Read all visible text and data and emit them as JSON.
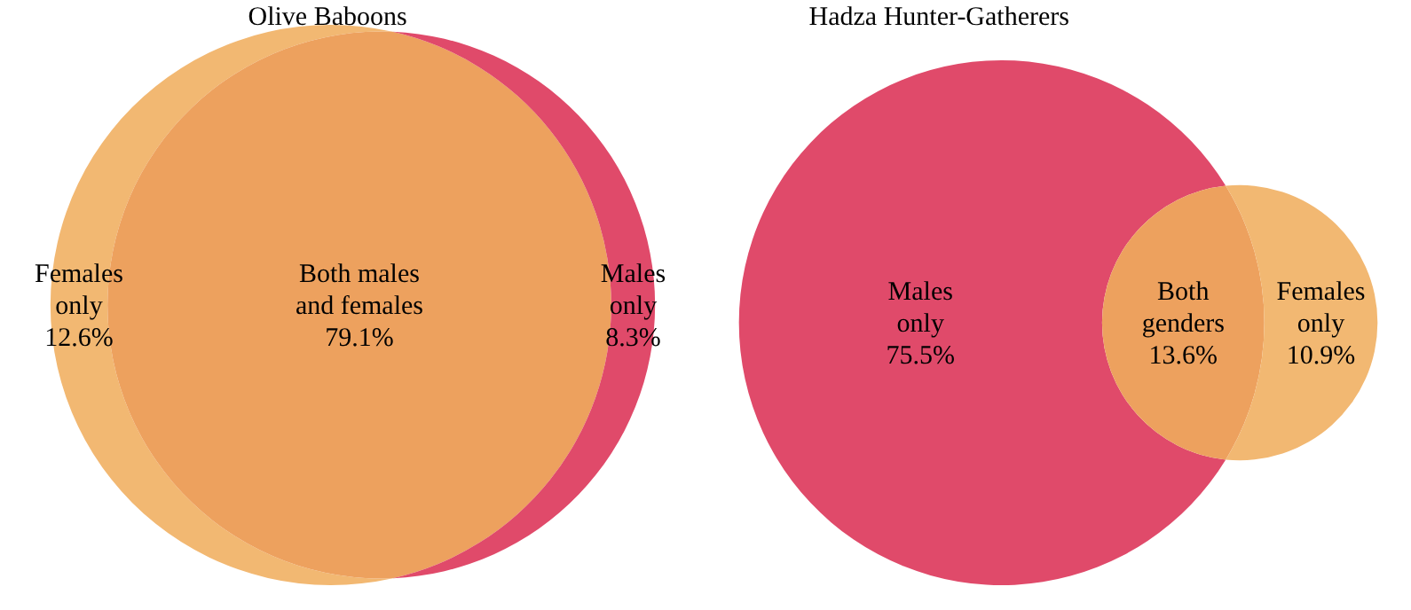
{
  "chart_data": [
    {
      "type": "other",
      "title": "Olive Baboons",
      "categories": [
        "Females\nonly",
        "Both males\nand females",
        "Males\nonly"
      ],
      "values": [
        12.6,
        79.1,
        8.3
      ],
      "value_labels": [
        "12.6%",
        "79.1%",
        "8.3%"
      ],
      "colors": [
        "#f2b872",
        "#eda15e",
        "#e04a6a"
      ]
    },
    {
      "type": "other",
      "title": "Hadza Hunter-Gatherers",
      "categories": [
        "Males\nonly",
        "Both\ngenders",
        "Females\nonly"
      ],
      "values": [
        75.5,
        13.6,
        10.9
      ],
      "value_labels": [
        "75.5%",
        "13.6%",
        "10.9%"
      ],
      "colors": [
        "#e04a6a",
        "#eda15e",
        "#f2b872"
      ]
    }
  ]
}
